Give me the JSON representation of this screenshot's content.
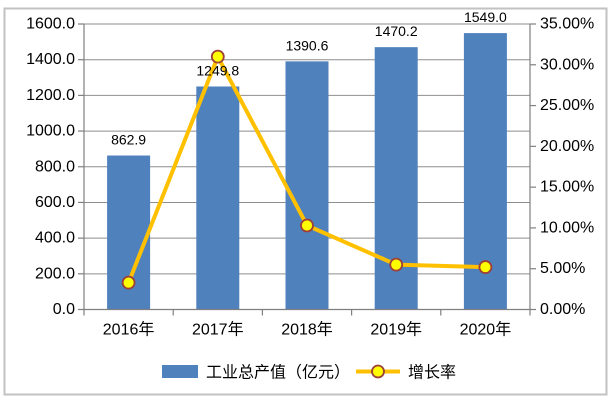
{
  "figure": {
    "background": "#FFFFFF",
    "frame_border_color": "#C2C2C2"
  },
  "chart_data": {
    "type": "combo-bar-line",
    "title": "",
    "categories": [
      "2016年",
      "2017年",
      "2018年",
      "2019年",
      "2020年"
    ],
    "series": [
      {
        "name": "工业总产值（亿元）",
        "type": "bar",
        "axis": "left",
        "values": [
          862.9,
          1249.8,
          1390.6,
          1470.2,
          1549.0
        ],
        "data_labels": [
          "862.9",
          "1249.8",
          "1390.6",
          "1470.2",
          "1549.0"
        ],
        "color": "#4F81BD"
      },
      {
        "name": "增长率",
        "type": "line",
        "axis": "right",
        "values_percent": [
          3.3,
          31.0,
          10.3,
          5.5,
          5.2
        ],
        "line_color": "#FFC000",
        "marker_fill": "#FFFF00",
        "marker_border": "#9E4038"
      }
    ],
    "left_axis": {
      "min": 0,
      "max": 1600,
      "step": 200,
      "tick_labels": [
        "0.0",
        "200.0",
        "400.0",
        "600.0",
        "800.0",
        "1000.0",
        "1200.0",
        "1400.0",
        "1600.0"
      ]
    },
    "right_axis": {
      "min": 0,
      "max": 35,
      "step": 5,
      "tick_labels": [
        "0.00%",
        "5.00%",
        "10.00%",
        "15.00%",
        "20.00%",
        "25.00%",
        "30.00%",
        "35.00%"
      ]
    },
    "gridlines": {
      "show": true,
      "color": "#8E8E8E"
    },
    "axis_line_color": "#7F7F7F",
    "text_color": "#000000",
    "legend": {
      "position": "bottom",
      "items": [
        "工业总产值（亿元）",
        "增长率"
      ]
    }
  }
}
